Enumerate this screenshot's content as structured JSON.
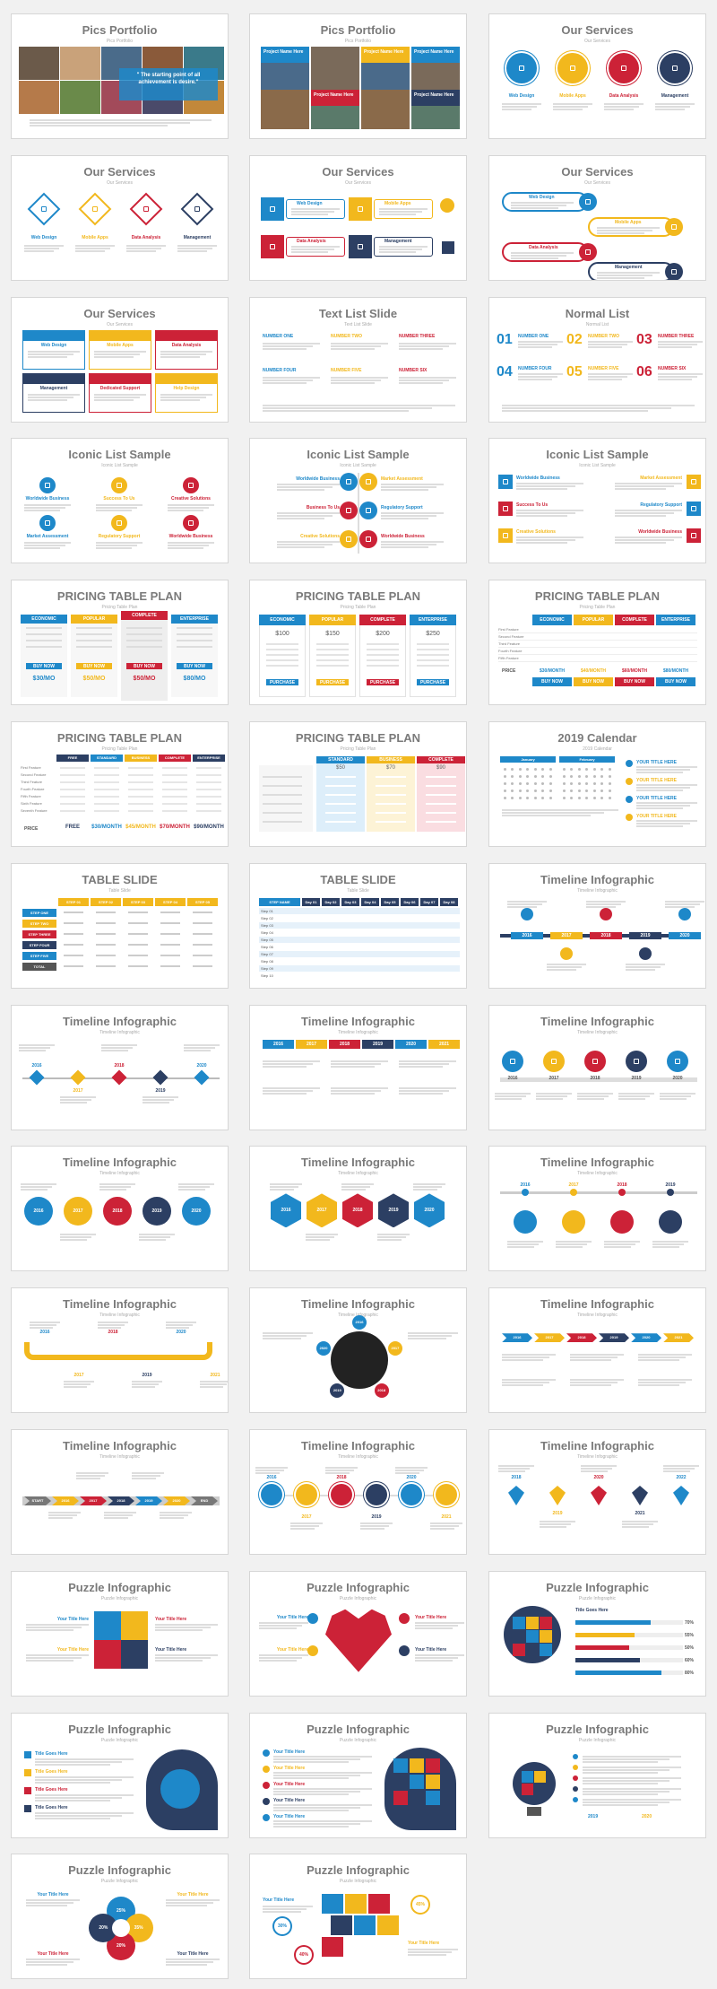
{
  "colors": {
    "blue": "#1e88c9",
    "yellow": "#f2b81d",
    "red": "#cc2237",
    "navy": "#2c3f63",
    "gray": "#9e9e9e",
    "light": "#f3f3f3"
  },
  "slides": [
    {
      "t": "Pics Portfolio",
      "s": "Pics Portfolio",
      "k": "pics1",
      "quote": "\" The starting point of all achievement is desire.\""
    },
    {
      "t": "Pics Portfolio",
      "s": "Pics Portfolio",
      "k": "pics2",
      "labels": [
        "Project Name Here",
        "Project Name Here",
        "Project Name Here",
        "Project Name Here",
        "Project Name Here"
      ]
    },
    {
      "t": "Our Services",
      "s": "Our Services",
      "k": "serv_circles",
      "items": [
        "Web Design",
        "Mobile Apps",
        "Data Analysis",
        "Management"
      ]
    },
    {
      "t": "Our Services",
      "s": "Our Services",
      "k": "serv_diamonds",
      "items": [
        "Web Design",
        "Mobile Apps",
        "Data Analysis",
        "Management"
      ]
    },
    {
      "t": "Our Services",
      "s": "Our Services",
      "k": "serv_boxes",
      "items": [
        "Web Design",
        "Mobile Apps",
        "Data Analysis",
        "Management"
      ]
    },
    {
      "t": "Our Services",
      "s": "Our Services",
      "k": "serv_pills",
      "items": [
        "Web Design",
        "Mobile Apps",
        "Data Analysis",
        "Management"
      ]
    },
    {
      "t": "Our Services",
      "s": "Our Services",
      "k": "serv_grid",
      "items": [
        "Web Design",
        "Mobile Apps",
        "Data Analysis",
        "Management",
        "Dedicated Support",
        "Help Design"
      ]
    },
    {
      "t": "Text List Slide",
      "s": "Text List Slide",
      "k": "textlist",
      "items": [
        "NUMBER ONE",
        "NUMBER TWO",
        "NUMBER THREE",
        "NUMBER FOUR",
        "NUMBER FIVE",
        "NUMBER SIX"
      ]
    },
    {
      "t": "Normal List",
      "s": "Normal List",
      "k": "normallist",
      "nums": [
        "01",
        "02",
        "03",
        "04",
        "05",
        "06"
      ],
      "items": [
        "NUMBER ONE",
        "NUMBER TWO",
        "NUMBER THREE",
        "NUMBER FOUR",
        "NUMBER FIVE",
        "NUMBER SIX"
      ]
    },
    {
      "t": "Iconic List Sample",
      "s": "Iconic List Sample",
      "k": "iconic1",
      "items": [
        "Worldwide Business",
        "Success To Us",
        "Creative Solutions",
        "Market Assessment",
        "Regulatory Support",
        "Worldwide Business"
      ]
    },
    {
      "t": "Iconic List Sample",
      "s": "Iconic List Sample",
      "k": "iconic2",
      "items": [
        "Worldwide Business",
        "Market Assessment",
        "Business To Us",
        "Regulatory Support",
        "Creative Solutions",
        "Worldwide Business"
      ]
    },
    {
      "t": "Iconic List Sample",
      "s": "Iconic List Sample",
      "k": "iconic3",
      "items": [
        "Worldwide Business",
        "Market Assessment",
        "Success To Us",
        "Regulatory Support",
        "Creative Solutions",
        "Worldwide Business"
      ]
    },
    {
      "t": "PRICING TABLE PLAN",
      "s": "Pricing Table Plan",
      "k": "price1",
      "plans": [
        "ECONOMIC",
        "POPULAR",
        "COMPLETE",
        "ENTERPRISE"
      ],
      "prices": [
        "$30/MO",
        "$50/MO",
        "$50/MO",
        "$80/MO"
      ],
      "buy": "BUY NOW"
    },
    {
      "t": "PRICING TABLE PLAN",
      "s": "Pricing Table Plan",
      "k": "price2",
      "plans": [
        "ECONOMIC",
        "POPULAR",
        "COMPLETE",
        "ENTERPRISE"
      ],
      "prices": [
        "$100",
        "$150",
        "$200",
        "$250"
      ],
      "buy": "PURCHASE"
    },
    {
      "t": "PRICING TABLE PLAN",
      "s": "Pricing Table Plan",
      "k": "price3",
      "plans": [
        "ECONOMIC",
        "POPULAR",
        "COMPLETE",
        "ENTERPRISE"
      ],
      "rows": [
        "First Feature",
        "Second Feature",
        "Third Feature",
        "Fourth Feature",
        "Fifth Feature"
      ],
      "pricelbl": "PRICE",
      "prices": [
        "$30/MONTH",
        "$40/MONTH",
        "$60/MONTH",
        "$80/MONTH"
      ],
      "buy": "BUY NOW"
    },
    {
      "t": "PRICING TABLE PLAN",
      "s": "Pricing Table Plan",
      "k": "price4",
      "plans": [
        "FREE",
        "STANDARD",
        "BUSINESS",
        "COMPLETE",
        "ENTERPRISE"
      ],
      "rows": [
        "First Feature",
        "Second Feature",
        "Third Feature",
        "Fourth Feature",
        "Fifth Feature",
        "Sixth Feature",
        "Seventh Feature"
      ],
      "pricelbl": "PRICE",
      "prices": [
        "FREE",
        "$30/MONTH",
        "$45/MONTH",
        "$70/MONTH",
        "$90/MONTH"
      ]
    },
    {
      "t": "PRICING TABLE PLAN",
      "s": "Pricing Table Plan",
      "k": "price5",
      "plans": [
        "STANDARD",
        "BUSINESS",
        "COMPLETE"
      ],
      "prices": [
        "$50",
        "$70",
        "$90"
      ]
    },
    {
      "t": "2019 Calendar",
      "s": "2019 Calendar",
      "k": "calendar",
      "months": [
        "January",
        "February"
      ],
      "items": [
        "YOUR TITLE HERE",
        "YOUR TITLE HERE",
        "YOUR TITLE HERE",
        "YOUR TITLE HERE"
      ]
    },
    {
      "t": "TABLE SLIDE",
      "s": "Table Slide",
      "k": "table1",
      "head": [
        "STEP 01",
        "STEP 02",
        "STEP 03",
        "STEP 04",
        "STEP 05"
      ],
      "rows": [
        "STEP ONE",
        "STEP TWO",
        "STEP THREE",
        "STEP FOUR",
        "STEP FIVE",
        "TOTAL"
      ]
    },
    {
      "t": "TABLE SLIDE",
      "s": "Table Slide",
      "k": "table2",
      "head": [
        "STEP NAME",
        "Day 01",
        "Day 02",
        "Day 03",
        "Day 04",
        "Day 05",
        "Day 06",
        "Day 07",
        "Day 08"
      ],
      "rows": [
        "Step 01",
        "Step 02",
        "Step 03",
        "Step 04",
        "Step 05",
        "Step 06",
        "Step 07",
        "Step 08",
        "Step 09",
        "Step 10"
      ]
    },
    {
      "t": "Timeline Infographic",
      "s": "Timeline Infographic",
      "k": "tl1",
      "years": [
        "2016",
        "2017",
        "2018",
        "2019",
        "2020"
      ]
    },
    {
      "t": "Timeline Infographic",
      "s": "Timeline Infographic",
      "k": "tl2",
      "years": [
        "2016",
        "2017",
        "2018",
        "2019",
        "2020"
      ]
    },
    {
      "t": "Timeline Infographic",
      "s": "Timeline Infographic",
      "k": "tl3",
      "years": [
        "2016",
        "2017",
        "2018",
        "2019",
        "2020",
        "2021"
      ]
    },
    {
      "t": "Timeline Infographic",
      "s": "Timeline Infographic",
      "k": "tl4",
      "years": [
        "2016",
        "2017",
        "2018",
        "2019",
        "2020"
      ]
    },
    {
      "t": "Timeline Infographic",
      "s": "Timeline Infographic",
      "k": "tl5",
      "years": [
        "2016",
        "2017",
        "2018",
        "2019",
        "2020"
      ]
    },
    {
      "t": "Timeline Infographic",
      "s": "Timeline Infographic",
      "k": "tl6",
      "years": [
        "2016",
        "2017",
        "2018",
        "2019",
        "2020"
      ]
    },
    {
      "t": "Timeline Infographic",
      "s": "Timeline Infographic",
      "k": "tl7",
      "years": [
        "2016",
        "2017",
        "2018",
        "2019"
      ]
    },
    {
      "t": "Timeline Infographic",
      "s": "Timeline Infographic",
      "k": "tl8",
      "years": [
        "2016",
        "2017",
        "2018",
        "2019",
        "2020",
        "2021"
      ]
    },
    {
      "t": "Timeline Infographic",
      "s": "Timeline Infographic",
      "k": "tl9",
      "years": [
        "2016",
        "2017",
        "2018",
        "2019",
        "2020"
      ]
    },
    {
      "t": "Timeline Infographic",
      "s": "Timeline Infographic",
      "k": "tl10",
      "years": [
        "2016",
        "2017",
        "2018",
        "2019",
        "2020",
        "2021"
      ]
    },
    {
      "t": "Timeline Infographic",
      "s": "Timeline Infographic",
      "k": "tl11",
      "years": [
        "START",
        "2016",
        "2017",
        "2018",
        "2019",
        "2020",
        "END"
      ]
    },
    {
      "t": "Timeline Infographic",
      "s": "Timeline Infographic",
      "k": "tl12",
      "years": [
        "2016",
        "2017",
        "2018",
        "2019",
        "2020",
        "2021"
      ]
    },
    {
      "t": "Timeline Infographic",
      "s": "Timeline Infographic",
      "k": "tl13",
      "years": [
        "2018",
        "2019",
        "2020",
        "2021",
        "2022"
      ]
    },
    {
      "t": "Puzzle Infographic",
      "s": "Puzzle Infographic",
      "k": "pz1",
      "items": [
        "Your Title Here",
        "Your Title Here",
        "Your Title Here",
        "Your Title Here"
      ]
    },
    {
      "t": "Puzzle Infographic",
      "s": "Puzzle Infographic",
      "k": "pz2",
      "items": [
        "Your Title Here",
        "Your Title Here",
        "Your Title Here",
        "Your Title Here"
      ]
    },
    {
      "t": "Puzzle Infographic",
      "s": "Puzzle Infographic",
      "k": "pz3",
      "items": [
        "Title Goes Here"
      ],
      "pcts": [
        "70%",
        "55%",
        "50%",
        "60%",
        "80%"
      ]
    },
    {
      "t": "Puzzle Infographic",
      "s": "Puzzle Infographic",
      "k": "pz4",
      "items": [
        "Title Goes Here",
        "Title Goes Here",
        "Title Goes Here",
        "Title Goes Here"
      ]
    },
    {
      "t": "Puzzle Infographic",
      "s": "Puzzle Infographic",
      "k": "pz5",
      "items": [
        "Your Title Here",
        "Your Title Here",
        "Your Title Here",
        "Your Title Here",
        "Your Title Here"
      ]
    },
    {
      "t": "Puzzle Infographic",
      "s": "Puzzle Infographic",
      "k": "pz6",
      "items": [
        "2019",
        "2020"
      ]
    },
    {
      "t": "Puzzle Infographic",
      "s": "Puzzle Infographic",
      "k": "pz7",
      "pcts": [
        "25%",
        "35%",
        "20%",
        "20%"
      ],
      "items": [
        "Your Title Here",
        "Your Title Here",
        "Your Title Here",
        "Your Title Here"
      ]
    },
    {
      "t": "Puzzle Infographic",
      "s": "Puzzle Infographic",
      "k": "pz8",
      "items": [
        "Your Title Here",
        "Your Title Here"
      ],
      "pcts": [
        "30%",
        "45%",
        "40%"
      ]
    }
  ]
}
